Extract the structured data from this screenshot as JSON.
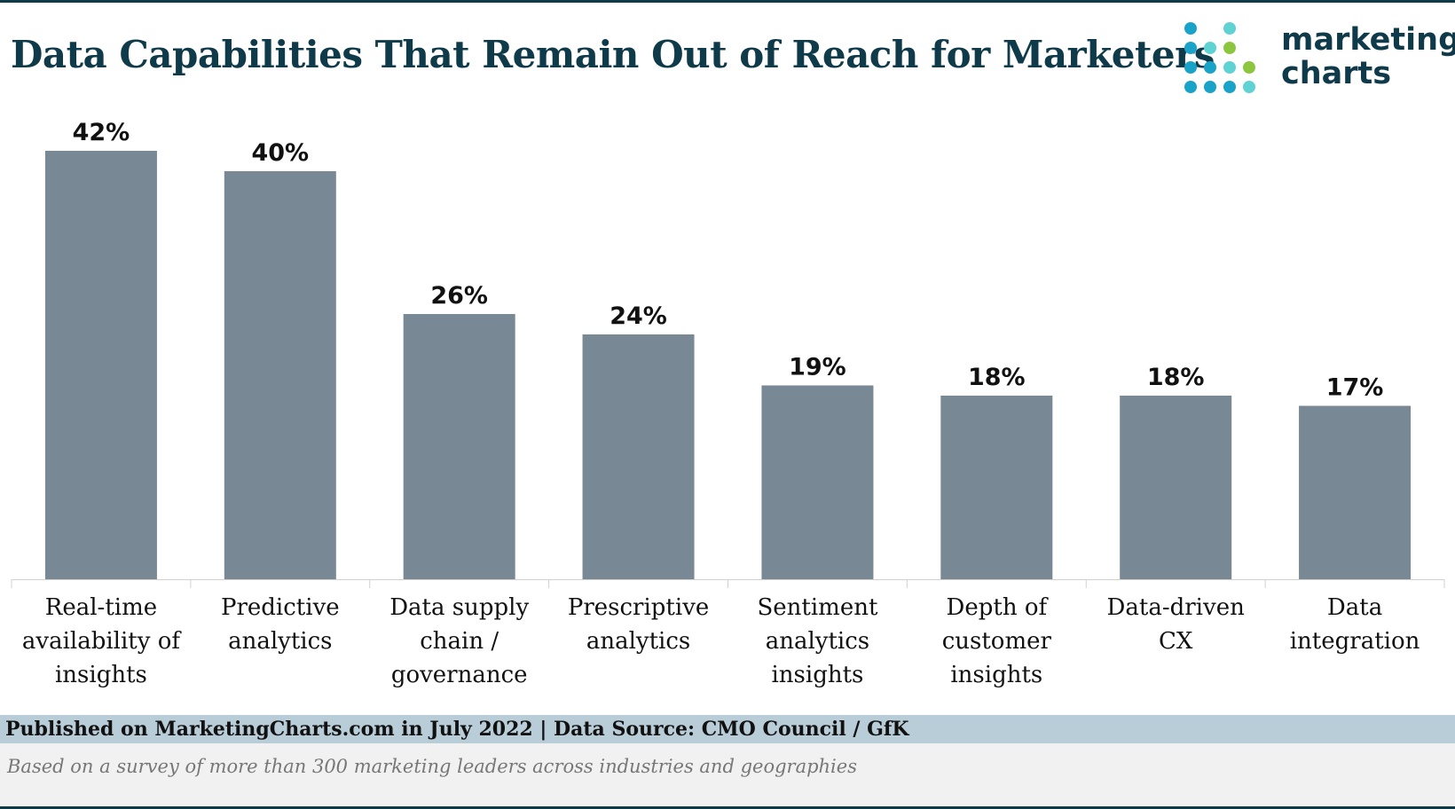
{
  "title": "Data Capabilities That Remain Out of Reach for Marketers",
  "logo": {
    "line1": "marketing",
    "line2": "charts",
    "icon": "dot-grid-logo-icon",
    "colors": [
      "#19a3c8",
      "#5fd3d3",
      "#8cc63f"
    ]
  },
  "colors": {
    "bar": "#798895",
    "title": "#0f3a4a",
    "footer_band": "#b9cdd8",
    "note_band": "#f1f1f1"
  },
  "chart_data": {
    "type": "bar",
    "categories": [
      "Real-time availability of insights",
      "Predictive analytics",
      "Data supply chain / governance",
      "Prescriptive analytics",
      "Sentiment analytics insights",
      "Depth of customer insights",
      "Data-driven CX",
      "Data integration"
    ],
    "category_lines": [
      [
        "Real-time",
        "availability of",
        "insights"
      ],
      [
        "Predictive",
        "analytics"
      ],
      [
        "Data supply",
        "chain /",
        "governance"
      ],
      [
        "Prescriptive",
        "analytics"
      ],
      [
        "Sentiment",
        "analytics",
        "insights"
      ],
      [
        "Depth of",
        "customer",
        "insights"
      ],
      [
        "Data-driven",
        "CX"
      ],
      [
        "Data",
        "integration"
      ]
    ],
    "values": [
      42,
      40,
      26,
      24,
      19,
      18,
      18,
      17
    ],
    "value_labels": [
      "42%",
      "40%",
      "26%",
      "24%",
      "19%",
      "18%",
      "18%",
      "17%"
    ],
    "unit": "%",
    "ylim": [
      0,
      42
    ],
    "grid": false,
    "legend": "none",
    "xlabel": "",
    "ylabel": ""
  },
  "footer": {
    "source": "Published on MarketingCharts.com in July 2022 | Data Source: CMO Council / GfK",
    "note": "Based on a survey of more than 300 marketing leaders across industries and geographies"
  }
}
